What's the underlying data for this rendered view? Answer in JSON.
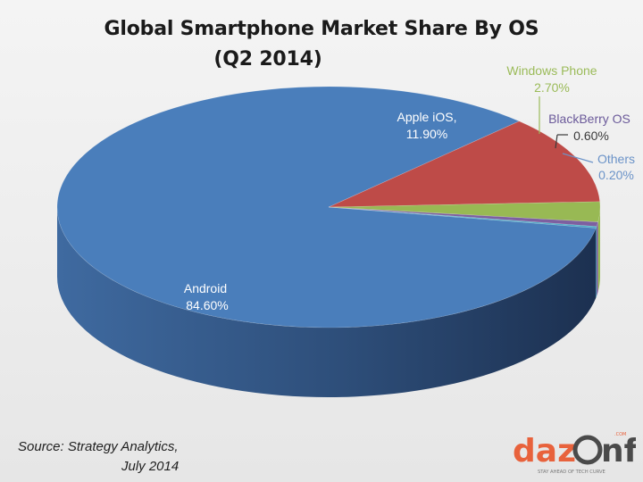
{
  "chart_data": {
    "type": "pie",
    "title": "Global Smartphone Market Share By OS",
    "subtitle": "(Q2 2014)",
    "slices": [
      {
        "label": "Android",
        "value": 84.6,
        "value_label": "84.60%",
        "color": "#4a7ebb"
      },
      {
        "label": "Apple iOS,",
        "value": 11.9,
        "value_label": "11.90%",
        "color": "#be4b48"
      },
      {
        "label": "Windows Phone",
        "value": 2.7,
        "value_label": "2.70%",
        "color": "#98b954"
      },
      {
        "label": "BlackBerry OS",
        "value": 0.6,
        "value_label": "0.60%",
        "color": "#7d60a0"
      },
      {
        "label": "Others",
        "value": 0.2,
        "value_label": "0.20%",
        "color": "#46aac5"
      }
    ]
  },
  "source": {
    "line1": "Source:  Strategy  Analytics,",
    "line2": "July 2014"
  },
  "logo": {
    "text": "dazinfo",
    "dotcom": ".COM",
    "tagline": "STAY AHEAD OF TECH CURVE",
    "brand_color": "#e8623c",
    "dark_color": "#4a4a4a"
  }
}
